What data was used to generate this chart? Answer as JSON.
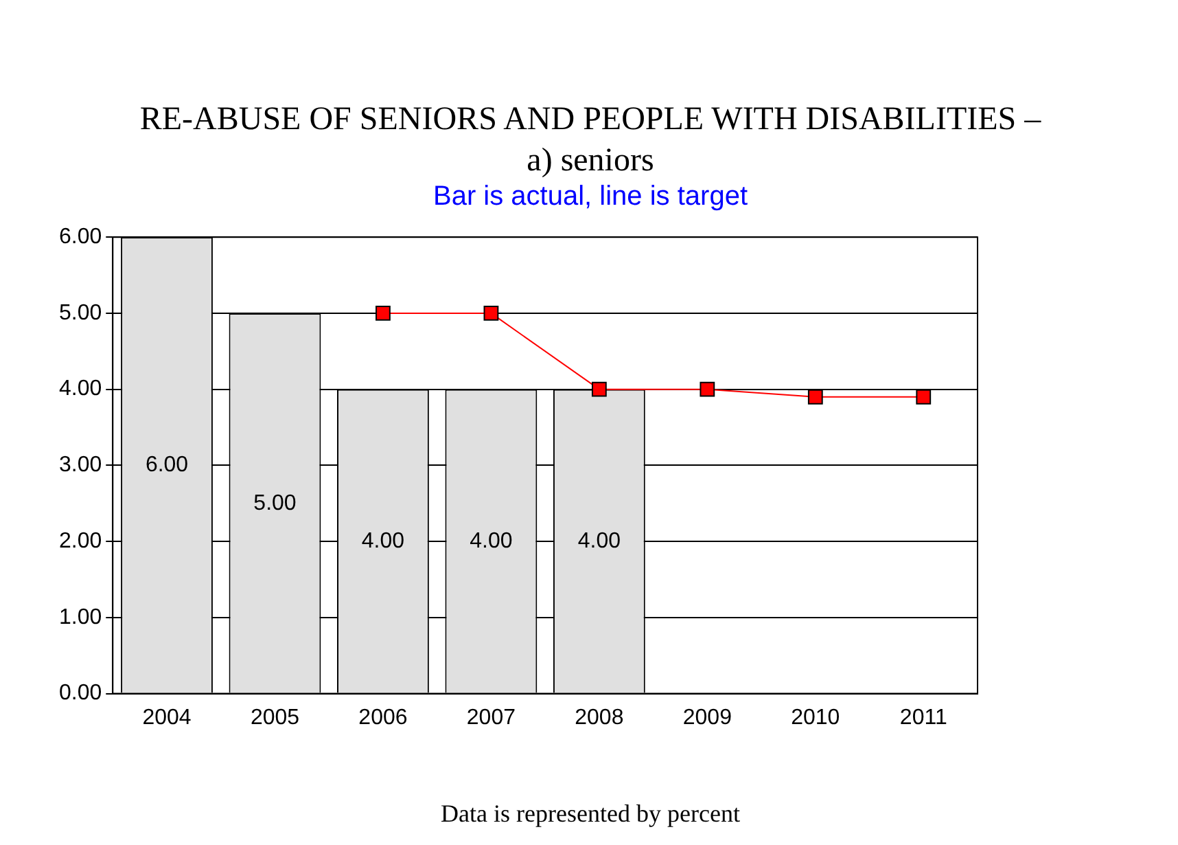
{
  "chart_data": {
    "type": "bar",
    "title": "RE-ABUSE OF SENIORS AND PEOPLE WITH DISABILITIES – a) seniors",
    "subtitle": "Bar is actual, line is target",
    "categories": [
      "2004",
      "2005",
      "2006",
      "2007",
      "2008",
      "2009",
      "2010",
      "2011"
    ],
    "series": [
      {
        "color": "#e0e0e0",
        "values": [
          6,
          5,
          4,
          4,
          4,
          null,
          null,
          null
        ],
        "value_labels": [
          "6.00",
          "5.00",
          "4.00",
          "4.00",
          "4.00",
          null,
          null,
          null
        ]
      },
      {
        "type": "line",
        "color": "#ff0000",
        "values": [
          null,
          null,
          5,
          5,
          4,
          4,
          3.9,
          3.9
        ],
        "marker": "square"
      }
    ],
    "ylim": [
      0,
      6
    ],
    "yticks": [
      {
        "value": 0,
        "label": "0.00"
      },
      {
        "value": 1,
        "label": "1.00"
      },
      {
        "value": 2,
        "label": "2.00"
      },
      {
        "value": 3,
        "label": "3.00"
      },
      {
        "value": 4,
        "label": "4.00"
      },
      {
        "value": 5,
        "label": "5.00"
      },
      {
        "value": 6,
        "label": "6.00"
      }
    ],
    "grid": "y",
    "legend": false,
    "annotations": [
      "Data is represented by percent"
    ]
  }
}
